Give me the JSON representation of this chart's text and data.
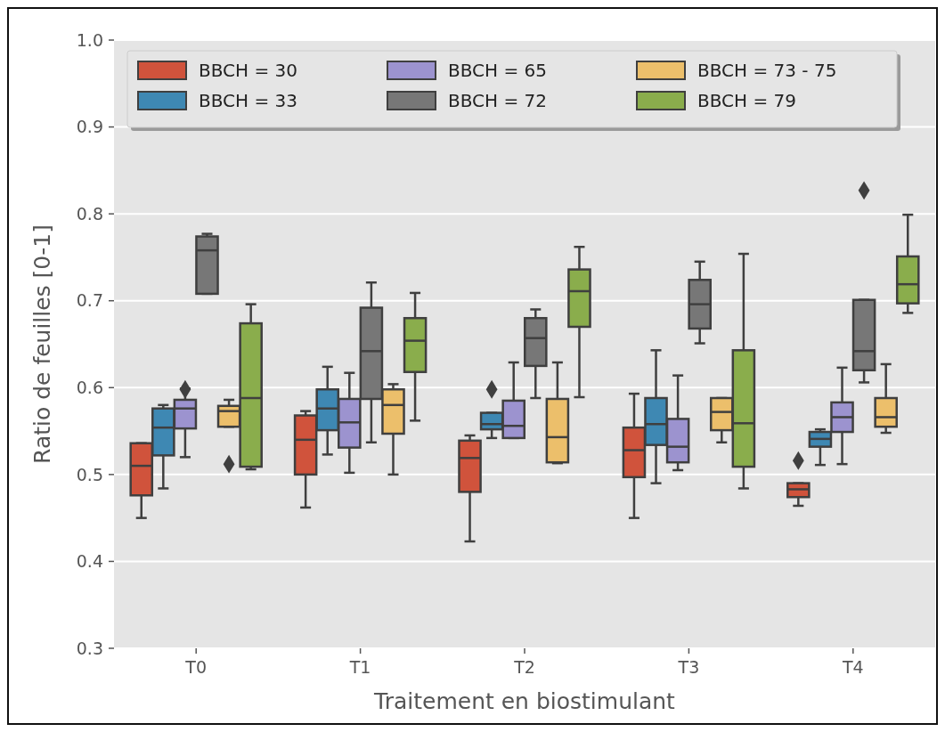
{
  "chart_data": {
    "type": "box",
    "xlabel": "Traitement en biostimulant",
    "ylabel": "Ratio de feuilles [0-1]",
    "categories": [
      "T0",
      "T1",
      "T2",
      "T3",
      "T4"
    ],
    "ylim": [
      0.3,
      1.0
    ],
    "yticks": [
      0.3,
      0.4,
      0.5,
      0.6,
      0.7,
      0.8,
      0.9,
      {
        "value": 1.0,
        "label": "1.0"
      }
    ],
    "grid": "y",
    "legend": "top left",
    "marker": "diamond",
    "series": [
      {
        "name": "BBCH = 30",
        "color": "#d0533c",
        "boxes": [
          {
            "low": 0.45,
            "q1": 0.476,
            "median": 0.51,
            "q3": 0.536,
            "high": 0.536
          },
          {
            "low": 0.462,
            "q1": 0.5,
            "median": 0.54,
            "q3": 0.568,
            "high": 0.573
          },
          {
            "low": 0.423,
            "q1": 0.48,
            "median": 0.519,
            "q3": 0.539,
            "high": 0.545
          },
          {
            "low": 0.45,
            "q1": 0.497,
            "median": 0.528,
            "q3": 0.554,
            "high": 0.593
          },
          {
            "low": 0.464,
            "q1": 0.474,
            "median": 0.483,
            "q3": 0.49,
            "high": 0.49,
            "outliers": [
              0.516
            ]
          }
        ]
      },
      {
        "name": "BBCH = 33",
        "color": "#3e88b3",
        "boxes": [
          {
            "low": 0.484,
            "q1": 0.522,
            "median": 0.554,
            "q3": 0.576,
            "high": 0.58
          },
          {
            "low": 0.523,
            "q1": 0.551,
            "median": 0.576,
            "q3": 0.598,
            "high": 0.624
          },
          {
            "low": 0.542,
            "q1": 0.552,
            "median": 0.558,
            "q3": 0.571,
            "high": 0.571,
            "outliers": [
              0.598
            ]
          },
          {
            "low": 0.49,
            "q1": 0.534,
            "median": 0.558,
            "q3": 0.588,
            "high": 0.643
          },
          {
            "low": 0.511,
            "q1": 0.532,
            "median": 0.541,
            "q3": 0.549,
            "high": 0.552
          }
        ]
      },
      {
        "name": "BBCH = 65",
        "color": "#9c93cf",
        "boxes": [
          {
            "low": 0.52,
            "q1": 0.553,
            "median": 0.576,
            "q3": 0.586,
            "high": 0.599,
            "outliers": [
              0.598
            ]
          },
          {
            "low": 0.502,
            "q1": 0.531,
            "median": 0.56,
            "q3": 0.587,
            "high": 0.617
          },
          {
            "low": 0.542,
            "q1": 0.542,
            "median": 0.556,
            "q3": 0.585,
            "high": 0.629
          },
          {
            "low": 0.505,
            "q1": 0.514,
            "median": 0.532,
            "q3": 0.564,
            "high": 0.614
          },
          {
            "low": 0.512,
            "q1": 0.549,
            "median": 0.566,
            "q3": 0.583,
            "high": 0.623
          }
        ]
      },
      {
        "name": "BBCH = 72",
        "color": "#777777",
        "boxes": [
          {
            "low": 0.708,
            "q1": 0.708,
            "median": 0.758,
            "q3": 0.774,
            "high": 0.777
          },
          {
            "low": 0.537,
            "q1": 0.587,
            "median": 0.642,
            "q3": 0.692,
            "high": 0.721
          },
          {
            "low": 0.588,
            "q1": 0.625,
            "median": 0.657,
            "q3": 0.68,
            "high": 0.69
          },
          {
            "low": 0.651,
            "q1": 0.668,
            "median": 0.696,
            "q3": 0.724,
            "high": 0.745
          },
          {
            "low": 0.606,
            "q1": 0.62,
            "median": 0.642,
            "q3": 0.701,
            "high": 0.701,
            "outliers": [
              0.827
            ]
          }
        ]
      },
      {
        "name": "BBCH = 73 - 75",
        "color": "#ecbf6b",
        "boxes": [
          {
            "low": 0.555,
            "q1": 0.555,
            "median": 0.573,
            "q3": 0.579,
            "high": 0.586,
            "outliers": [
              0.512
            ]
          },
          {
            "low": 0.5,
            "q1": 0.547,
            "median": 0.58,
            "q3": 0.598,
            "high": 0.604
          },
          {
            "low": 0.513,
            "q1": 0.514,
            "median": 0.543,
            "q3": 0.587,
            "high": 0.629
          },
          {
            "low": 0.537,
            "q1": 0.551,
            "median": 0.572,
            "q3": 0.588,
            "high": 0.588
          },
          {
            "low": 0.548,
            "q1": 0.555,
            "median": 0.566,
            "q3": 0.588,
            "high": 0.627
          }
        ]
      },
      {
        "name": "BBCH = 79",
        "color": "#8aad4c",
        "boxes": [
          {
            "low": 0.506,
            "q1": 0.509,
            "median": 0.588,
            "q3": 0.674,
            "high": 0.696
          },
          {
            "low": 0.562,
            "q1": 0.618,
            "median": 0.654,
            "q3": 0.68,
            "high": 0.709
          },
          {
            "low": 0.589,
            "q1": 0.67,
            "median": 0.711,
            "q3": 0.736,
            "high": 0.762
          },
          {
            "low": 0.484,
            "q1": 0.509,
            "median": 0.559,
            "q3": 0.643,
            "high": 0.754
          },
          {
            "low": 0.686,
            "q1": 0.697,
            "median": 0.719,
            "q3": 0.751,
            "high": 0.799
          }
        ]
      }
    ]
  }
}
